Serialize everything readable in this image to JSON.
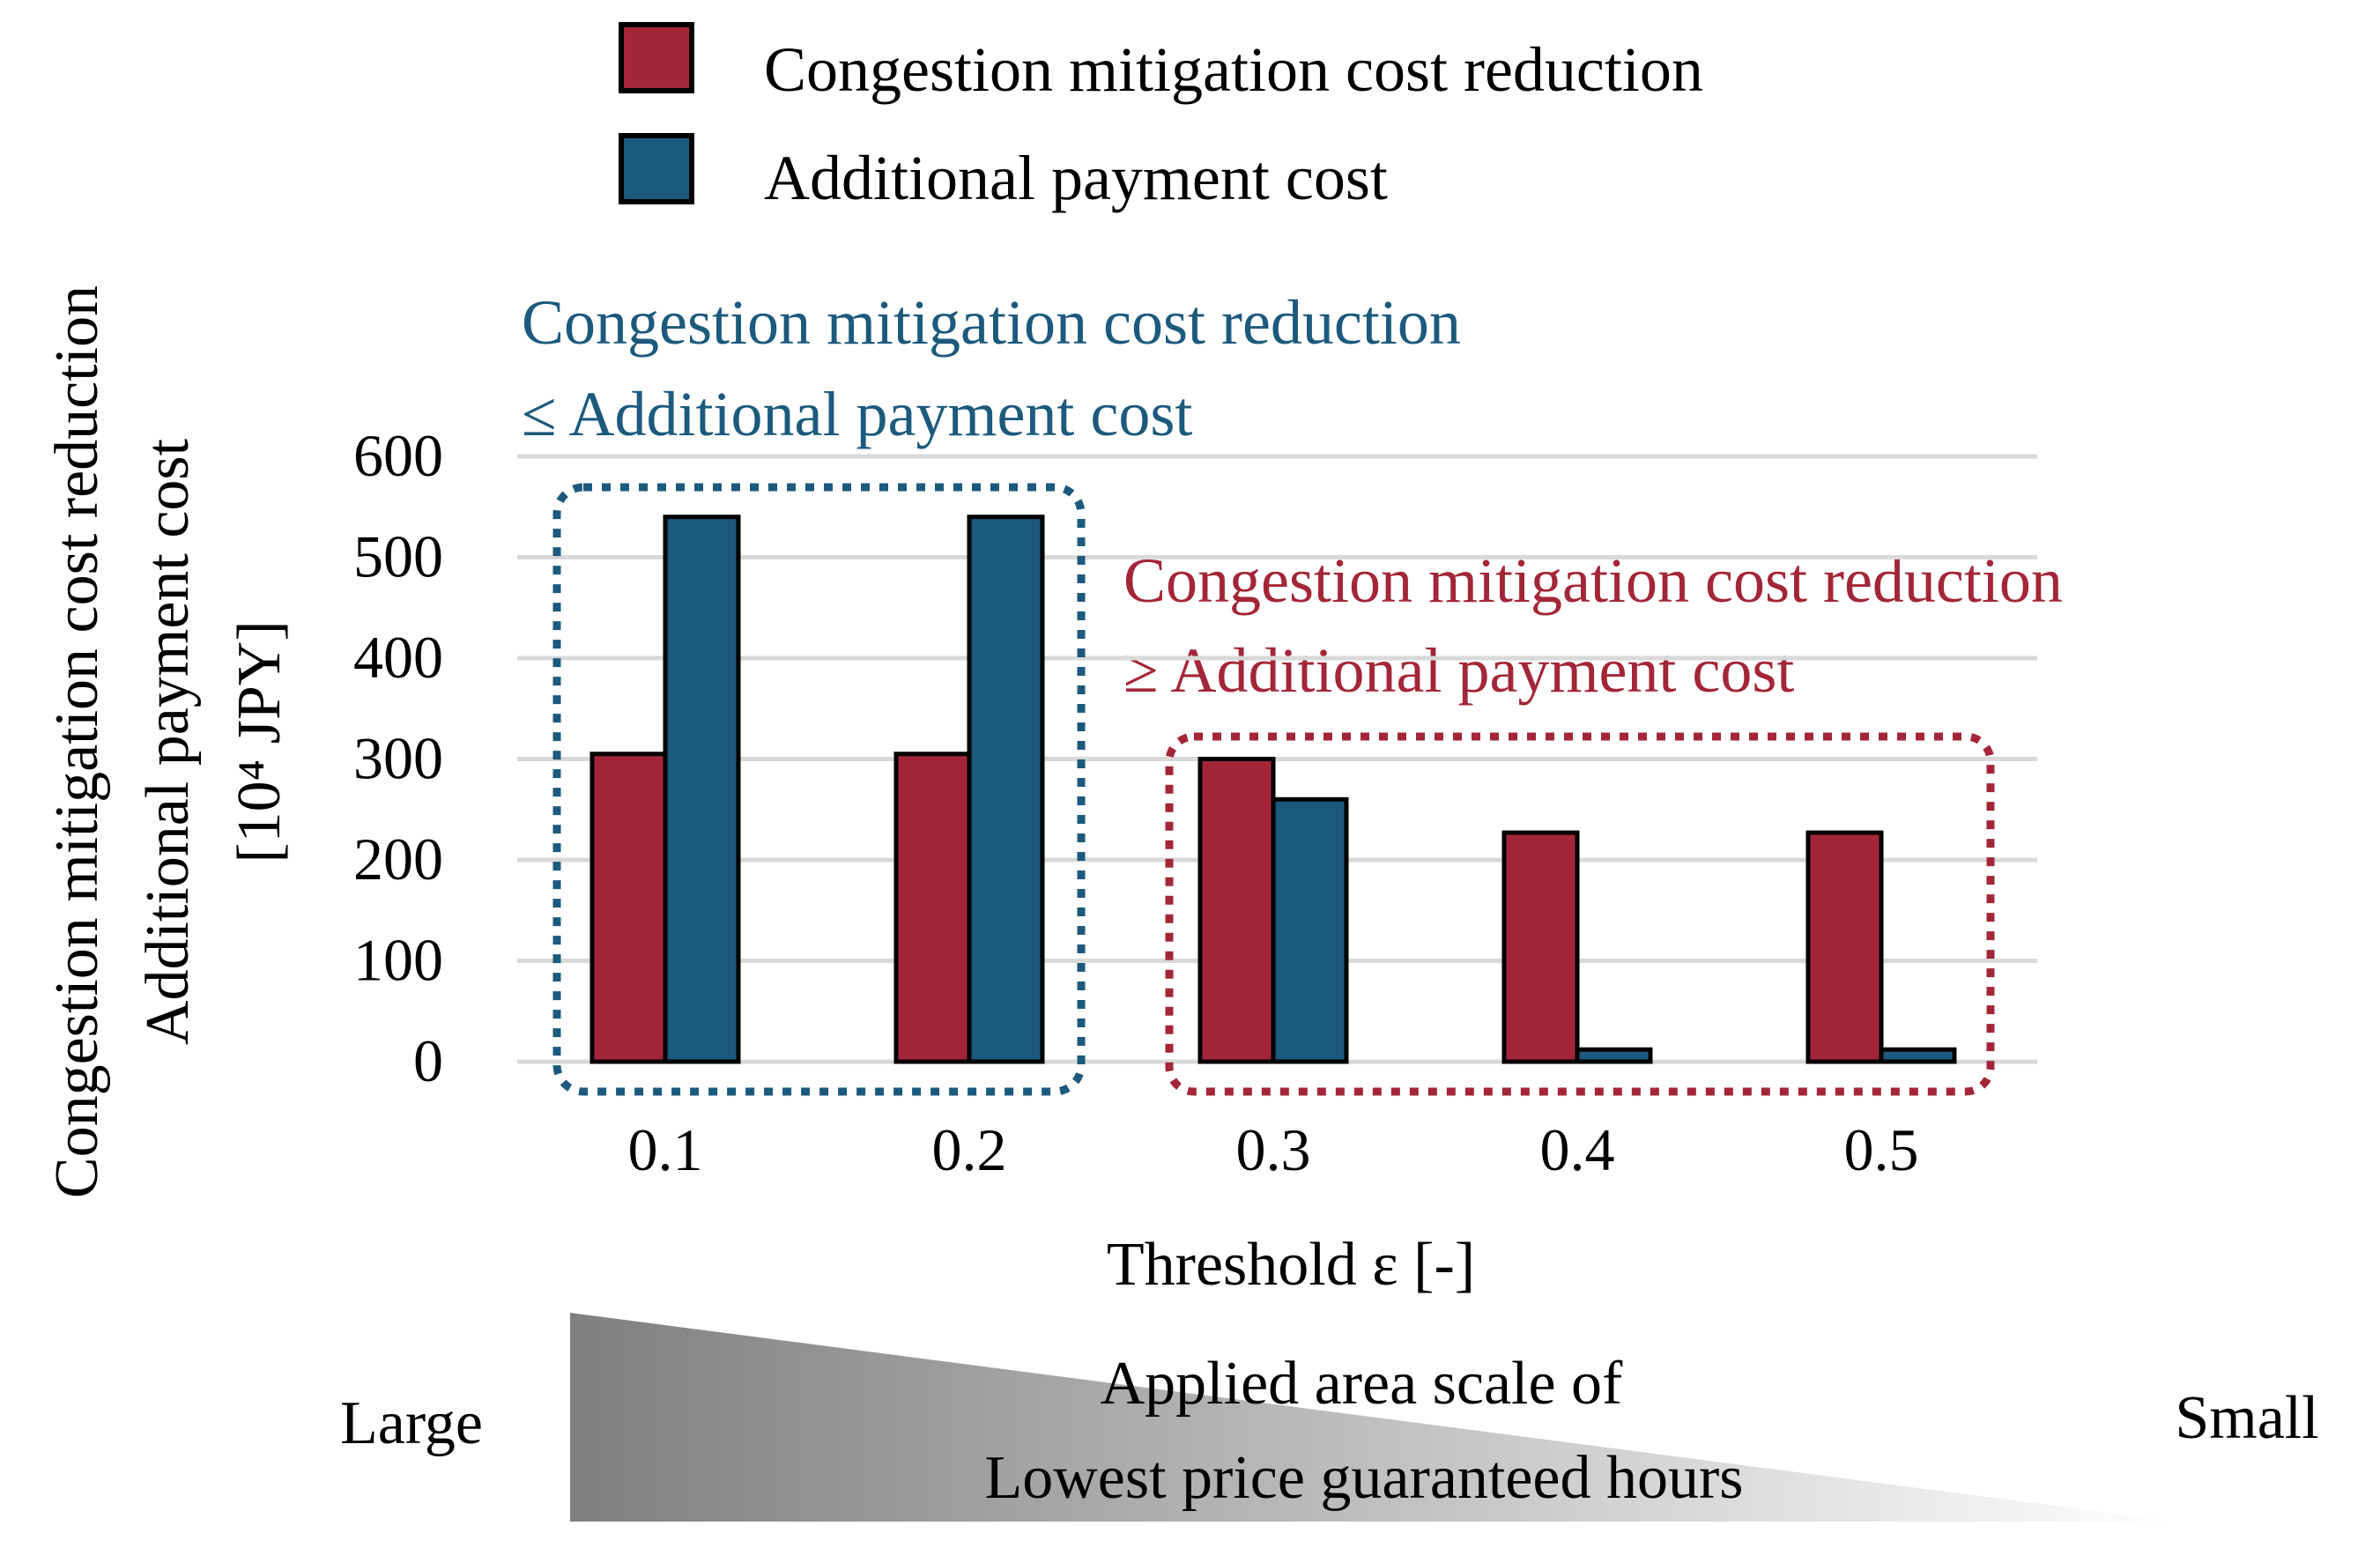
{
  "colors": {
    "reduction": "#A32638",
    "payment": "#1C5A7D",
    "grid": "#D9D9D9",
    "annotation_blue": "#1C5A7D",
    "annotation_red": "#A32638"
  },
  "chart_data": {
    "type": "bar",
    "categories": [
      "0.1",
      "0.2",
      "0.3",
      "0.4",
      "0.5"
    ],
    "series": [
      {
        "name": "Congestion mitigation cost reduction",
        "values": [
          305,
          305,
          300,
          227,
          227
        ]
      },
      {
        "name": "Additional payment cost",
        "values": [
          540,
          540,
          260,
          12,
          12
        ]
      }
    ],
    "title": "",
    "xlabel": "Threshold ε [-]",
    "ylabel_lines": [
      "Congestion mitigation cost reduction",
      "Additional payment cost",
      "[10⁴ JPY]"
    ],
    "ylim": [
      0,
      600
    ],
    "yticks": [
      "0",
      "100",
      "200",
      "300",
      "400",
      "500",
      "600"
    ],
    "grid": true,
    "legend_position": "top-center",
    "annotations": [
      {
        "group": "left",
        "lines": [
          "Congestion mitigation cost reduction",
          "≤ Additional payment cost"
        ]
      },
      {
        "group": "right",
        "lines": [
          "Congestion mitigation cost reduction",
          "≥ Additional payment cost"
        ]
      }
    ]
  },
  "scale": {
    "title_lines": [
      "Applied area scale of",
      "Lowest price guaranteed hours"
    ],
    "left_label": "Large",
    "right_label": "Small"
  }
}
